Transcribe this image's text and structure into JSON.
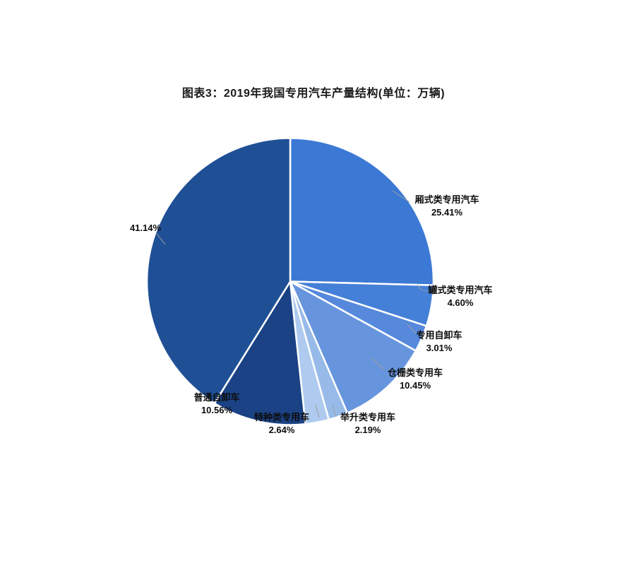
{
  "page": {
    "background_color": "#ffffff"
  },
  "chart_data": {
    "type": "pie",
    "title": "图表3：2019年我国专用汽车产量结构(单位：万辆)",
    "unit": "万辆",
    "legend_position": "none",
    "start_angle_deg": 0,
    "direction": "clockwise",
    "label_style": "outside-with-leader-lines",
    "slices": [
      {
        "label": "厢式类专用汽车",
        "value": 25.41,
        "pct_label": "25.41%",
        "color": "#3C79D5"
      },
      {
        "label": "罐式类专用汽车",
        "value": 4.6,
        "pct_label": "4.60%",
        "color": "#4580D8"
      },
      {
        "label": "专用自卸车",
        "value": 3.01,
        "pct_label": "3.01%",
        "color": "#5689DC"
      },
      {
        "label": "仓栅类专用车",
        "value": 10.45,
        "pct_label": "10.45%",
        "color": "#6795DD"
      },
      {
        "label": "举升类专用车",
        "value": 2.19,
        "pct_label": "2.19%",
        "color": "#97BAE9"
      },
      {
        "label": "特种类专用车",
        "value": 2.64,
        "pct_label": "2.64%",
        "color": "#AECBEF"
      },
      {
        "label": "普通自卸车",
        "value": 10.56,
        "pct_label": "10.56%",
        "color": "#1A4284"
      },
      {
        "label": "",
        "value": 41.14,
        "pct_label": "41.14%",
        "color": "#1F5096"
      }
    ],
    "pie_border_color": "#ffffff",
    "leader_line_color": "#9d9d9d"
  }
}
